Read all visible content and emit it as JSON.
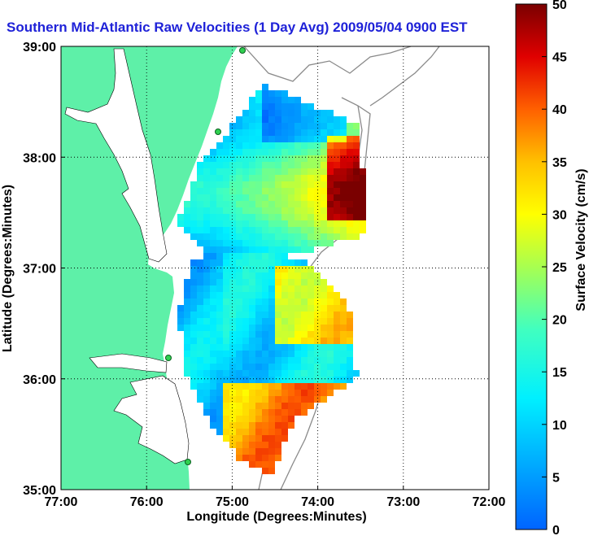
{
  "title": "Southern Mid-Atlantic Raw Velocities (1 Day Avg) 2009/05/04 0900 EST",
  "map": {
    "xlabel": "Longitude (Degrees:Minutes)",
    "ylabel": "Latitude (Degrees:Minutes)",
    "lon_ticks": [
      "77:00",
      "76:00",
      "75:00",
      "74:00",
      "73:00",
      "72:00"
    ],
    "lat_ticks": [
      "39:00",
      "38:00",
      "37:00",
      "36:00",
      "35:00"
    ],
    "lon_range": [
      -77,
      -72
    ],
    "lat_range": [
      35,
      39
    ],
    "land_color": "#5ef0a8",
    "ocean_color": "#ffffff",
    "contour_color": "#8a8a8a",
    "grid": "dotted"
  },
  "colorbar": {
    "label": "Surface Velocity (cm/s)",
    "ticks": [
      "0",
      "5",
      "10",
      "15",
      "20",
      "25",
      "30",
      "35",
      "40",
      "45",
      "50"
    ],
    "min": 0,
    "max": 50,
    "colormap": "jet"
  }
}
